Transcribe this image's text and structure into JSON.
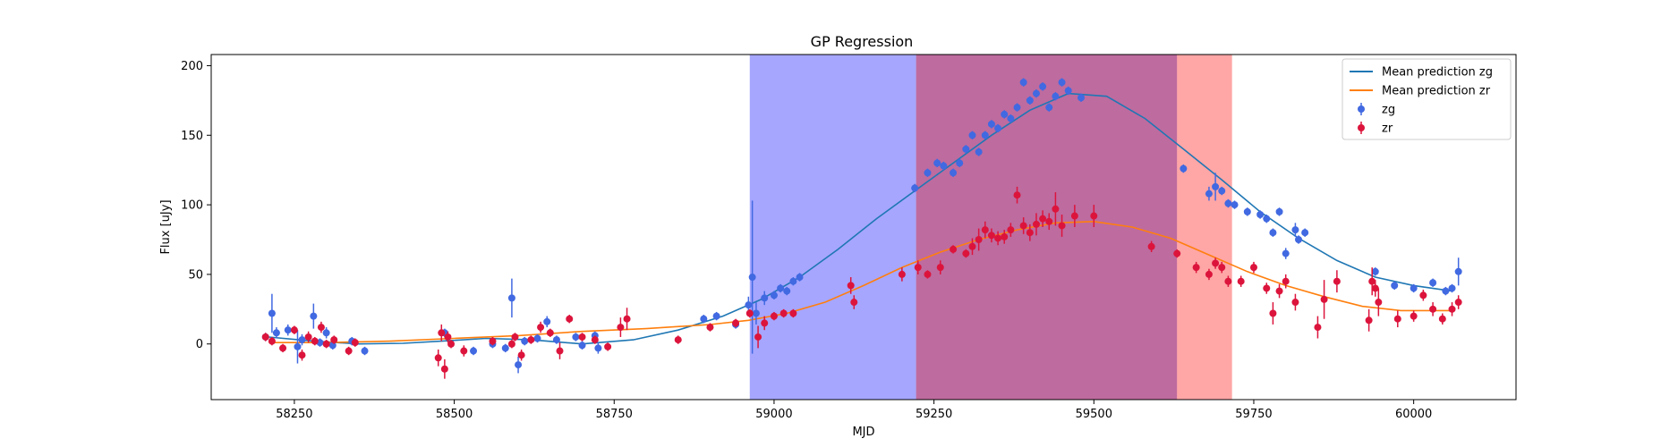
{
  "chart_data": {
    "type": "scatter",
    "title": "GP Regression",
    "xlabel": "MJD",
    "ylabel": "Flux [uJy]",
    "xlim": [
      58120,
      60160
    ],
    "ylim": [
      -40,
      208
    ],
    "xticks": [
      58250,
      58500,
      58750,
      59000,
      59250,
      59500,
      59750,
      60000
    ],
    "yticks": [
      0,
      50,
      100,
      150,
      200
    ],
    "grid": false,
    "legend_position": "top-right",
    "shaded_regions": [
      {
        "x0": 58962,
        "x1": 59222,
        "color": "#0000ff",
        "alpha": 0.35
      },
      {
        "x0": 59222,
        "x1": 59630,
        "color": "#9b1b6b",
        "alpha": 0.65
      },
      {
        "x0": 59630,
        "x1": 59716,
        "color": "#ff0000",
        "alpha": 0.35
      }
    ],
    "series": [
      {
        "name": "Mean prediction zg",
        "kind": "line",
        "color": "#1f77b4",
        "x": [
          58210,
          58280,
          58350,
          58420,
          58480,
          58550,
          58620,
          58700,
          58780,
          58850,
          58920,
          58980,
          59040,
          59100,
          59160,
          59220,
          59280,
          59340,
          59400,
          59460,
          59520,
          59580,
          59640,
          59700,
          59760,
          59820,
          59880,
          59940,
          60000,
          60060
        ],
        "y": [
          5,
          2,
          0,
          0.5,
          2,
          4,
          3,
          0,
          3,
          10,
          20,
          32,
          48,
          68,
          90,
          110,
          130,
          150,
          168,
          180,
          178,
          162,
          140,
          118,
          95,
          76,
          60,
          48,
          42,
          38
        ]
      },
      {
        "name": "Mean prediction zr",
        "kind": "line",
        "color": "#ff7f0e",
        "x": [
          58210,
          58300,
          58400,
          58500,
          58600,
          58700,
          58800,
          58900,
          58960,
          59020,
          59080,
          59140,
          59200,
          59260,
          59320,
          59380,
          59440,
          59500,
          59560,
          59620,
          59680,
          59740,
          59800,
          59860,
          59920,
          59980,
          60060
        ],
        "y": [
          1,
          1,
          2,
          4,
          6,
          9,
          11,
          14,
          17,
          22,
          30,
          42,
          55,
          66,
          75,
          82,
          87,
          88,
          84,
          76,
          64,
          52,
          42,
          34,
          27,
          24,
          24
        ]
      },
      {
        "name": "zg",
        "kind": "errorbar",
        "color": "#4169e1",
        "x": [
          58205,
          58215,
          58222,
          58240,
          58255,
          58262,
          58280,
          58290,
          58300,
          58310,
          58340,
          58360,
          58485,
          58530,
          58560,
          58580,
          58590,
          58600,
          58610,
          58630,
          58645,
          58660,
          58690,
          58700,
          58720,
          58725,
          58890,
          58910,
          58940,
          58960,
          58966,
          58972,
          58985,
          59000,
          59010,
          59020,
          59030,
          59040,
          59220,
          59240,
          59255,
          59265,
          59280,
          59290,
          59300,
          59310,
          59320,
          59330,
          59340,
          59350,
          59360,
          59370,
          59380,
          59390,
          59400,
          59410,
          59420,
          59430,
          59440,
          59450,
          59460,
          59480,
          59640,
          59680,
          59690,
          59700,
          59710,
          59720,
          59740,
          59760,
          59770,
          59780,
          59790,
          59800,
          59815,
          59820,
          59830,
          59940,
          59970,
          60000,
          60030,
          60050,
          60060,
          60070
        ],
        "y": [
          5,
          22,
          8,
          10,
          -2,
          3,
          20,
          1,
          8,
          -1,
          2,
          -5,
          8,
          -5,
          0,
          -3,
          33,
          -15,
          2,
          4,
          16,
          3,
          5,
          -1,
          6,
          -3,
          18,
          20,
          14,
          28,
          48,
          22,
          33,
          35,
          40,
          38,
          45,
          48,
          112,
          123,
          130,
          128,
          123,
          130,
          140,
          150,
          138,
          150,
          158,
          155,
          165,
          162,
          170,
          188,
          175,
          180,
          185,
          170,
          178,
          188,
          182,
          177,
          126,
          108,
          113,
          110,
          101,
          100,
          95,
          93,
          90,
          80,
          95,
          65,
          82,
          75,
          80,
          52,
          42,
          40,
          44,
          38,
          40,
          52
        ],
        "err": [
          3,
          14,
          4,
          4,
          12,
          4,
          9,
          3,
          4,
          3,
          3,
          3,
          3,
          3,
          3,
          3,
          14,
          6,
          3,
          3,
          4,
          3,
          3,
          3,
          3,
          4,
          3,
          3,
          3,
          6,
          55,
          8,
          5,
          3,
          3,
          3,
          3,
          3,
          3,
          3,
          3,
          3,
          3,
          3,
          3,
          3,
          3,
          3,
          3,
          3,
          3,
          3,
          3,
          3,
          3,
          3,
          3,
          3,
          3,
          3,
          3,
          3,
          3,
          5,
          10,
          3,
          3,
          3,
          3,
          3,
          3,
          3,
          3,
          4,
          5,
          3,
          3,
          3,
          3,
          3,
          3,
          3,
          3,
          10
        ]
      },
      {
        "name": "zr",
        "kind": "errorbar",
        "color": "#dc143c",
        "x": [
          58205,
          58215,
          58232,
          58250,
          58262,
          58272,
          58282,
          58292,
          58300,
          58312,
          58335,
          58345,
          58475,
          58480,
          58485,
          58490,
          58495,
          58515,
          58560,
          58590,
          58595,
          58605,
          58620,
          58635,
          58650,
          58665,
          58680,
          58700,
          58720,
          58740,
          58760,
          58770,
          58850,
          58900,
          58940,
          58962,
          58975,
          58985,
          59000,
          59015,
          59030,
          59120,
          59125,
          59200,
          59225,
          59240,
          59260,
          59280,
          59300,
          59310,
          59320,
          59330,
          59340,
          59350,
          59360,
          59370,
          59380,
          59390,
          59400,
          59410,
          59420,
          59430,
          59440,
          59450,
          59470,
          59500,
          59590,
          59630,
          59660,
          59680,
          59690,
          59700,
          59710,
          59730,
          59750,
          59770,
          59780,
          59790,
          59800,
          59815,
          59850,
          59860,
          59880,
          59930,
          59935,
          59940,
          59945,
          59975,
          60000,
          60015,
          60030,
          60045,
          60060,
          60070
        ],
        "y": [
          5,
          2,
          -3,
          10,
          -8,
          5,
          2,
          12,
          0,
          3,
          -5,
          1,
          -10,
          8,
          -18,
          5,
          0,
          -5,
          2,
          0,
          5,
          -8,
          3,
          12,
          8,
          -5,
          18,
          5,
          3,
          -2,
          12,
          18,
          3,
          12,
          15,
          22,
          5,
          15,
          20,
          22,
          22,
          42,
          30,
          50,
          55,
          50,
          55,
          68,
          65,
          70,
          75,
          82,
          78,
          76,
          77,
          82,
          107,
          85,
          80,
          86,
          90,
          88,
          97,
          85,
          92,
          92,
          70,
          65,
          55,
          50,
          58,
          55,
          45,
          45,
          55,
          40,
          22,
          38,
          45,
          30,
          12,
          32,
          45,
          17,
          45,
          40,
          30,
          18,
          20,
          35,
          25,
          18,
          25,
          30
        ],
        "err": [
          3,
          3,
          3,
          3,
          4,
          4,
          3,
          4,
          3,
          3,
          3,
          3,
          6,
          6,
          7,
          4,
          3,
          4,
          3,
          3,
          3,
          4,
          3,
          4,
          3,
          6,
          3,
          3,
          3,
          3,
          7,
          8,
          3,
          3,
          3,
          3,
          8,
          5,
          3,
          3,
          3,
          6,
          5,
          5,
          5,
          3,
          5,
          3,
          3,
          6,
          8,
          6,
          5,
          5,
          5,
          5,
          6,
          6,
          6,
          8,
          6,
          6,
          12,
          8,
          8,
          8,
          4,
          3,
          4,
          4,
          4,
          4,
          4,
          4,
          4,
          4,
          8,
          5,
          5,
          6,
          8,
          14,
          8,
          8,
          10,
          6,
          10,
          6,
          4,
          4,
          5,
          4,
          5,
          5
        ]
      }
    ]
  }
}
